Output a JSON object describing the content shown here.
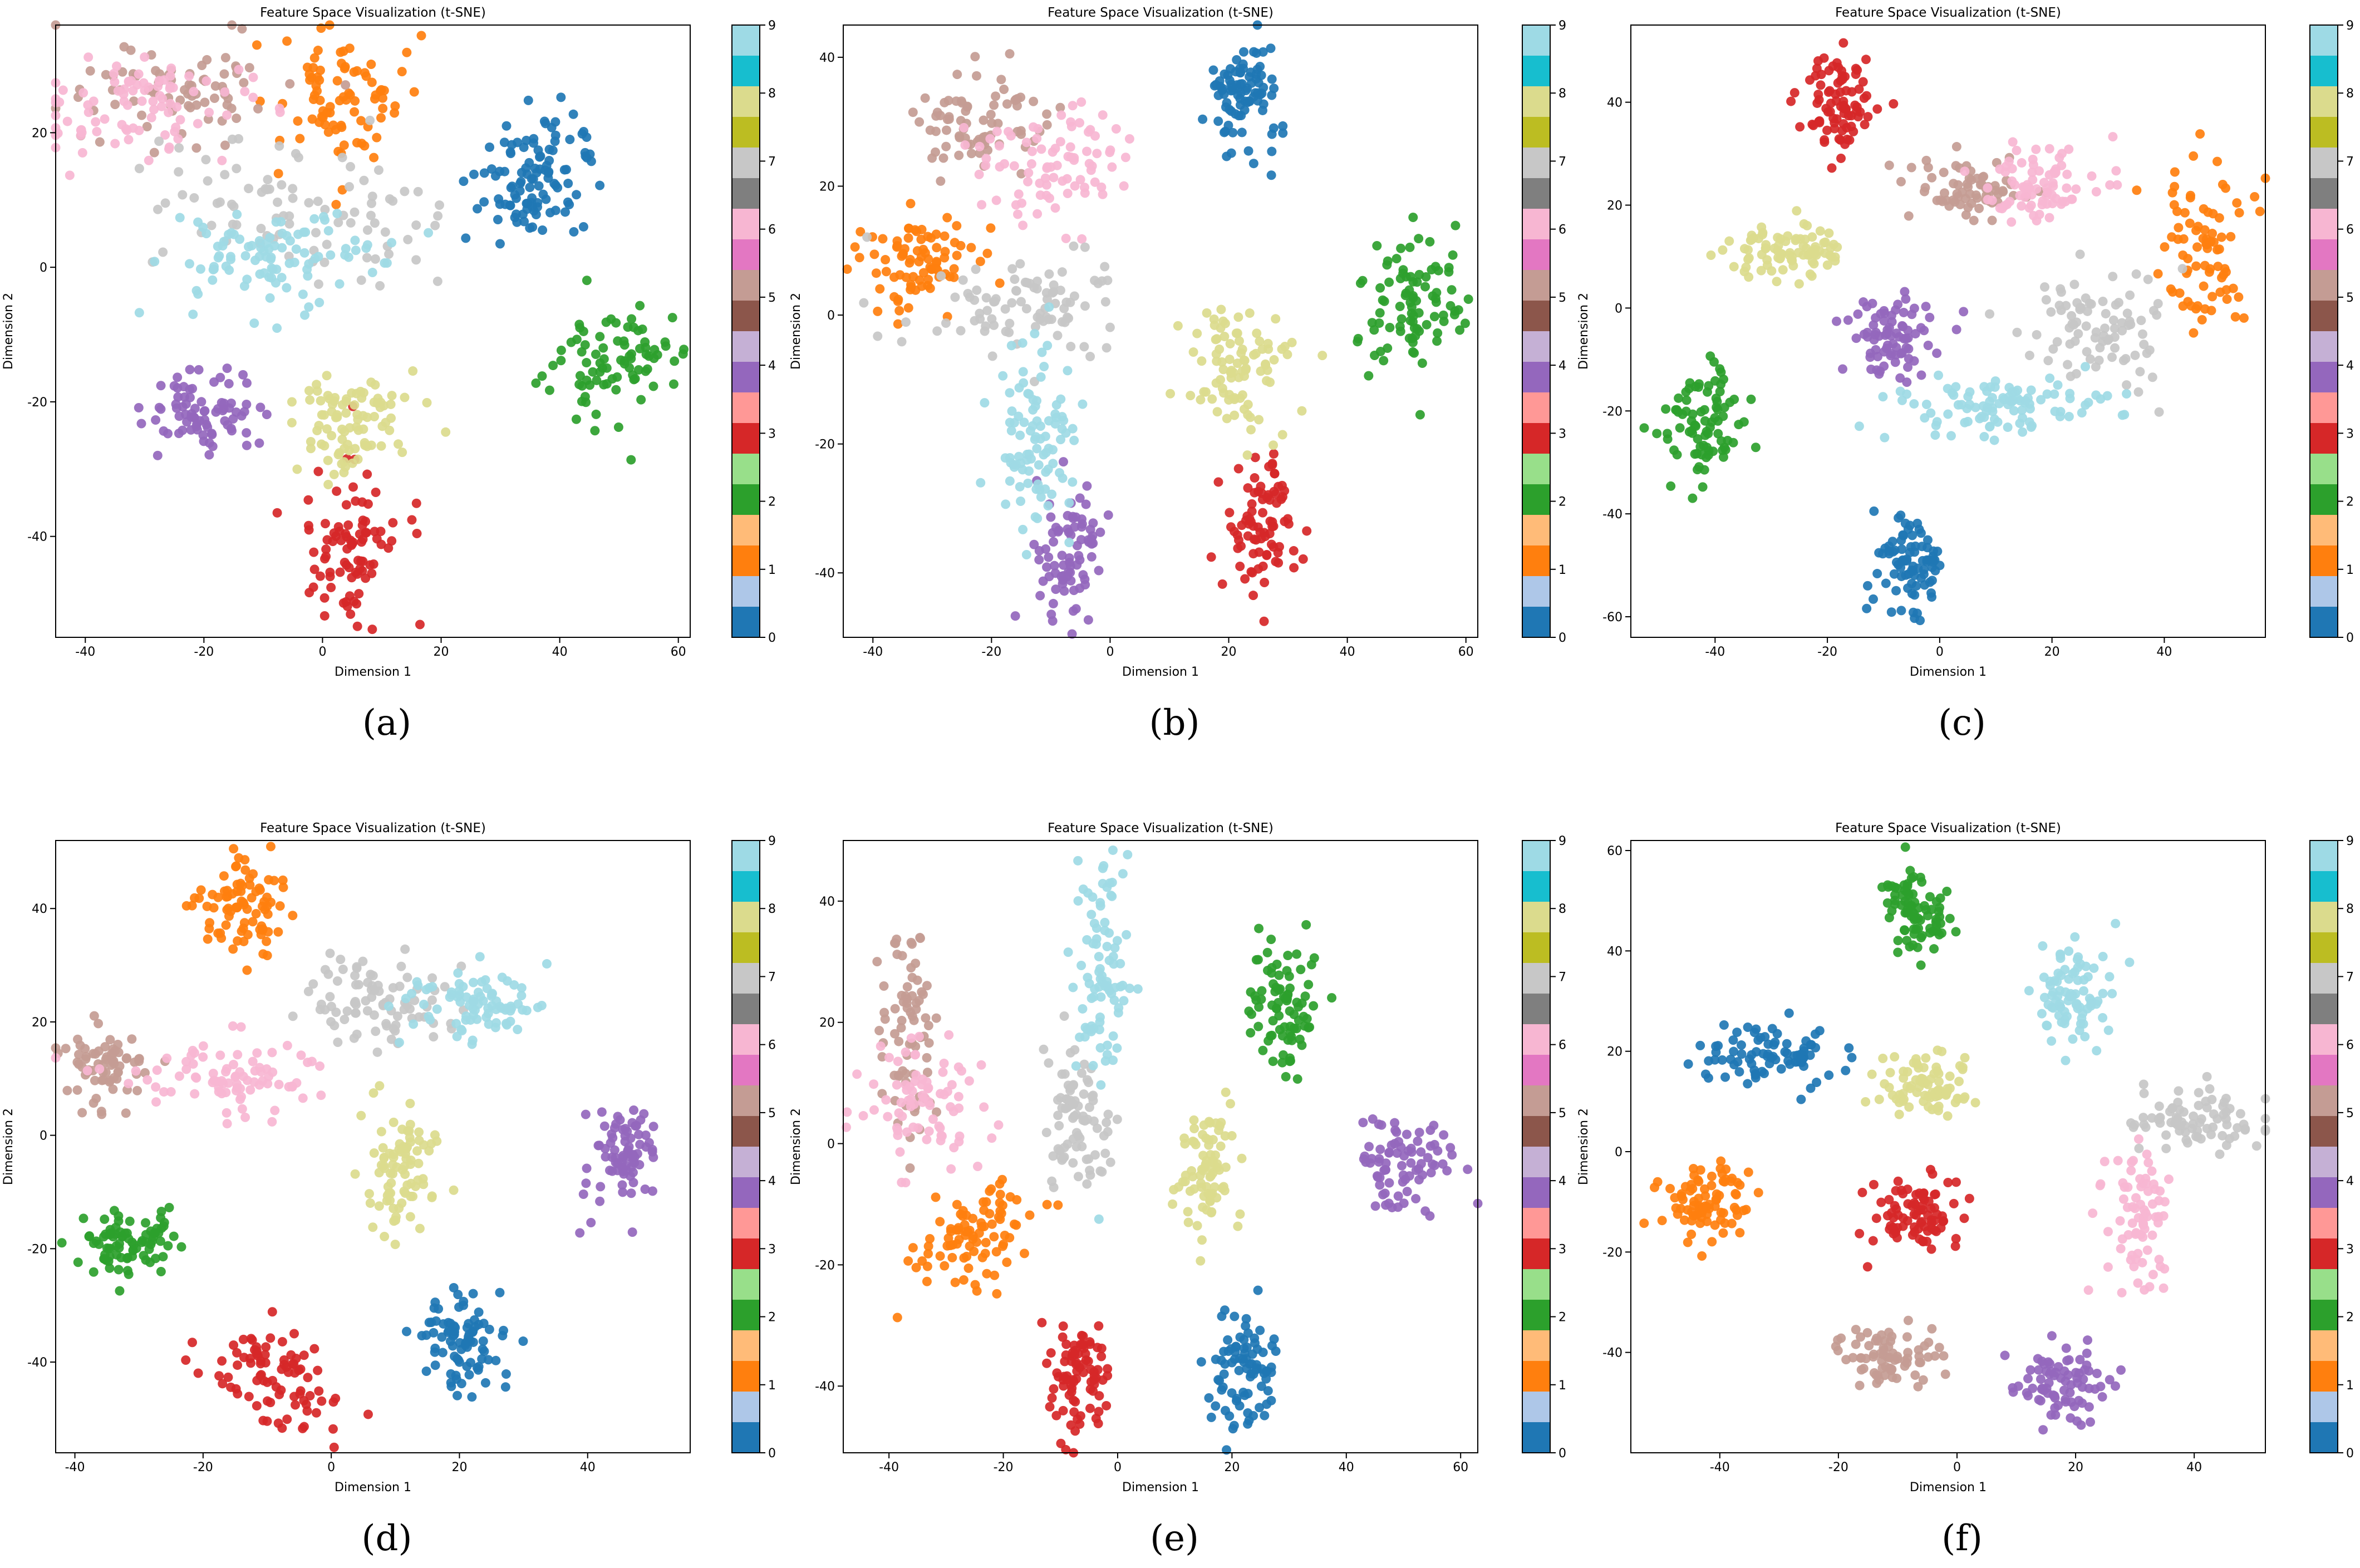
{
  "figure": {
    "panels": [
      "(a)",
      "(b)",
      "(c)",
      "(d)",
      "(e)",
      "(f)"
    ]
  },
  "chart_data": [
    {
      "type": "scatter",
      "title": "Feature Space Visualization (t-SNE)",
      "xlabel": "Dimension 1",
      "ylabel": "Dimension 2",
      "xlim": [
        -45,
        62
      ],
      "ylim": [
        -55,
        36
      ],
      "xticks": [
        -40,
        -20,
        0,
        20,
        40,
        60
      ],
      "yticks": [
        -40,
        -20,
        0,
        20
      ],
      "colorbar": {
        "ticks": [
          "0",
          "1",
          "2",
          "3",
          "4",
          "5",
          "6",
          "7",
          "8",
          "9"
        ],
        "colormap": "tab20"
      },
      "clusters": [
        {
          "label": 0,
          "color": "#1f77b4",
          "center": [
            36,
            13
          ],
          "spread": [
            5,
            4
          ],
          "n": 110,
          "ellipse_angle_deg": 35
        },
        {
          "label": 1,
          "color": "#ff7f0e",
          "center": [
            2,
            25
          ],
          "spread": [
            6,
            5
          ],
          "n": 85
        },
        {
          "label": 2,
          "color": "#2ca02c",
          "center": [
            49,
            -14
          ],
          "spread": [
            5,
            4
          ],
          "n": 85
        },
        {
          "label": 3,
          "color": "#d62728",
          "center": [
            5,
            -42
          ],
          "spread": [
            4,
            6
          ],
          "n": 90
        },
        {
          "label": 4,
          "color": "#9467bd",
          "center": [
            -20,
            -22
          ],
          "spread": [
            5,
            3
          ],
          "n": 80
        },
        {
          "label": 5,
          "color": "#c49c94",
          "center": [
            -23,
            27
          ],
          "spread": [
            10,
            4
          ],
          "n": 80
        },
        {
          "label": 6,
          "color": "#f7b6d2",
          "center": [
            -30,
            24
          ],
          "spread": [
            9,
            4
          ],
          "n": 90
        },
        {
          "label": 7,
          "color": "#c7c7c7",
          "center": [
            -5,
            8
          ],
          "spread": [
            12,
            5
          ],
          "n": 90
        },
        {
          "label": 8,
          "color": "#dbdb8d",
          "center": [
            5,
            -24
          ],
          "spread": [
            5,
            4
          ],
          "n": 90
        },
        {
          "label": 9,
          "color": "#9edae5",
          "center": [
            -8,
            1
          ],
          "spread": [
            9,
            4
          ],
          "n": 100
        }
      ]
    },
    {
      "type": "scatter",
      "title": "Feature Space Visualization (t-SNE)",
      "xlabel": "Dimension 1",
      "ylabel": "Dimension 2",
      "xlim": [
        -45,
        62
      ],
      "ylim": [
        -50,
        45
      ],
      "xticks": [
        -40,
        -20,
        0,
        20,
        40,
        60
      ],
      "yticks": [
        -40,
        -20,
        0,
        20,
        40
      ],
      "colorbar": {
        "ticks": [
          "0",
          "1",
          "2",
          "3",
          "4",
          "5",
          "6",
          "7",
          "8",
          "9"
        ],
        "colormap": "tab20"
      },
      "clusters": [
        {
          "label": 0,
          "color": "#1f77b4",
          "center": [
            22,
            34
          ],
          "spread": [
            3,
            4
          ],
          "n": 90
        },
        {
          "label": 1,
          "color": "#ff7f0e",
          "center": [
            -32,
            8
          ],
          "spread": [
            5,
            4
          ],
          "n": 85
        },
        {
          "label": 2,
          "color": "#2ca02c",
          "center": [
            51,
            2
          ],
          "spread": [
            5,
            5
          ],
          "n": 90,
          "ellipse_angle_deg": 35
        },
        {
          "label": 3,
          "color": "#d62728",
          "center": [
            26,
            -32
          ],
          "spread": [
            3,
            5
          ],
          "n": 85
        },
        {
          "label": 4,
          "color": "#9467bd",
          "center": [
            -7,
            -36
          ],
          "spread": [
            3,
            5
          ],
          "n": 80
        },
        {
          "label": 5,
          "color": "#c49c94",
          "center": [
            -22,
            30
          ],
          "spread": [
            6,
            4
          ],
          "n": 75
        },
        {
          "label": 6,
          "color": "#f7b6d2",
          "center": [
            -9,
            24
          ],
          "spread": [
            6,
            5
          ],
          "n": 85
        },
        {
          "label": 7,
          "color": "#c7c7c7",
          "center": [
            -15,
            2
          ],
          "spread": [
            8,
            4
          ],
          "n": 90
        },
        {
          "label": 8,
          "color": "#dbdb8d",
          "center": [
            22,
            -8
          ],
          "spread": [
            5,
            5
          ],
          "n": 90
        },
        {
          "label": 9,
          "color": "#9edae5",
          "center": [
            -12,
            -18
          ],
          "spread": [
            4,
            7
          ],
          "n": 95
        }
      ]
    },
    {
      "type": "scatter",
      "title": "Feature Space Visualization (t-SNE)",
      "xlabel": "Dimension 1",
      "ylabel": "Dimension 2",
      "xlim": [
        -55,
        58
      ],
      "ylim": [
        -64,
        55
      ],
      "xticks": [
        -40,
        -20,
        0,
        20,
        40
      ],
      "yticks": [
        -60,
        -40,
        -20,
        0,
        20,
        40
      ],
      "colorbar": {
        "ticks": [
          "0",
          "1",
          "2",
          "3",
          "4",
          "5",
          "6",
          "7",
          "8",
          "9"
        ],
        "colormap": "tab20"
      },
      "clusters": [
        {
          "label": 0,
          "color": "#1f77b4",
          "center": [
            -5,
            -50
          ],
          "spread": [
            3,
            5
          ],
          "n": 85
        },
        {
          "label": 1,
          "color": "#ff7f0e",
          "center": [
            47,
            10
          ],
          "spread": [
            4,
            7
          ],
          "n": 80
        },
        {
          "label": 2,
          "color": "#2ca02c",
          "center": [
            -42,
            -22
          ],
          "spread": [
            4,
            5
          ],
          "n": 85
        },
        {
          "label": 3,
          "color": "#d62728",
          "center": [
            -18,
            40
          ],
          "spread": [
            3,
            5
          ],
          "n": 85
        },
        {
          "label": 4,
          "color": "#9467bd",
          "center": [
            -9,
            -6
          ],
          "spread": [
            4,
            4
          ],
          "n": 80
        },
        {
          "label": 5,
          "color": "#c49c94",
          "center": [
            5,
            23
          ],
          "spread": [
            6,
            3
          ],
          "n": 70
        },
        {
          "label": 6,
          "color": "#f7b6d2",
          "center": [
            18,
            24
          ],
          "spread": [
            5,
            4
          ],
          "n": 80
        },
        {
          "label": 7,
          "color": "#c7c7c7",
          "center": [
            29,
            -4
          ],
          "spread": [
            7,
            6
          ],
          "n": 85
        },
        {
          "label": 8,
          "color": "#dbdb8d",
          "center": [
            -27,
            11
          ],
          "spread": [
            5,
            3
          ],
          "n": 85
        },
        {
          "label": 9,
          "color": "#9edae5",
          "center": [
            9,
            -19
          ],
          "spread": [
            10,
            3
          ],
          "n": 100
        }
      ]
    },
    {
      "type": "scatter",
      "title": "Feature Space Visualization (t-SNE)",
      "xlabel": "Dimension 1",
      "ylabel": "Dimension 2",
      "xlim": [
        -43,
        56
      ],
      "ylim": [
        -56,
        52
      ],
      "xticks": [
        -40,
        -20,
        0,
        20,
        40
      ],
      "yticks": [
        -40,
        -20,
        0,
        20,
        40
      ],
      "colorbar": {
        "ticks": [
          "0",
          "1",
          "2",
          "3",
          "4",
          "5",
          "6",
          "7",
          "8",
          "9"
        ],
        "colormap": "tab20"
      },
      "clusters": [
        {
          "label": 0,
          "color": "#1f77b4",
          "center": [
            20,
            -37
          ],
          "spread": [
            3,
            5
          ],
          "n": 85
        },
        {
          "label": 1,
          "color": "#ff7f0e",
          "center": [
            -14,
            40
          ],
          "spread": [
            4,
            4
          ],
          "n": 85
        },
        {
          "label": 2,
          "color": "#2ca02c",
          "center": [
            -32,
            -18
          ],
          "spread": [
            4,
            3
          ],
          "n": 85
        },
        {
          "label": 3,
          "color": "#d62728",
          "center": [
            -9,
            -42
          ],
          "spread": [
            4,
            6
          ],
          "n": 85,
          "ellipse_angle_deg": 55
        },
        {
          "label": 4,
          "color": "#9467bd",
          "center": [
            46,
            -3
          ],
          "spread": [
            3,
            5
          ],
          "n": 80
        },
        {
          "label": 5,
          "color": "#c49c94",
          "center": [
            -35,
            12
          ],
          "spread": [
            4,
            4
          ],
          "n": 70
        },
        {
          "label": 6,
          "color": "#f7b6d2",
          "center": [
            -16,
            10
          ],
          "spread": [
            8,
            3
          ],
          "n": 85
        },
        {
          "label": 7,
          "color": "#c7c7c7",
          "center": [
            7,
            24
          ],
          "spread": [
            6,
            4
          ],
          "n": 85
        },
        {
          "label": 8,
          "color": "#dbdb8d",
          "center": [
            10,
            -6
          ],
          "spread": [
            3,
            6
          ],
          "n": 85
        },
        {
          "label": 9,
          "color": "#9edae5",
          "center": [
            23,
            23
          ],
          "spread": [
            5,
            3
          ],
          "n": 85
        }
      ]
    },
    {
      "type": "scatter",
      "title": "Feature Space Visualization (t-SNE)",
      "xlabel": "Dimension 1",
      "ylabel": "Dimension 2",
      "xlim": [
        -48,
        63
      ],
      "ylim": [
        -51,
        50
      ],
      "xticks": [
        -40,
        -20,
        0,
        20,
        40,
        60
      ],
      "yticks": [
        -40,
        -20,
        0,
        20,
        40
      ],
      "colorbar": {
        "ticks": [
          "0",
          "1",
          "2",
          "3",
          "4",
          "5",
          "6",
          "7",
          "8",
          "9"
        ],
        "colormap": "tab20"
      },
      "clusters": [
        {
          "label": 0,
          "color": "#1f77b4",
          "center": [
            22,
            -37
          ],
          "spread": [
            3,
            5
          ],
          "n": 85
        },
        {
          "label": 1,
          "color": "#ff7f0e",
          "center": [
            -25,
            -16
          ],
          "spread": [
            6,
            4
          ],
          "n": 90,
          "ellipse_angle_deg": 35
        },
        {
          "label": 2,
          "color": "#2ca02c",
          "center": [
            29,
            22
          ],
          "spread": [
            3,
            5
          ],
          "n": 85
        },
        {
          "label": 3,
          "color": "#d62728",
          "center": [
            -6,
            -38
          ],
          "spread": [
            3,
            5
          ],
          "n": 85
        },
        {
          "label": 4,
          "color": "#9467bd",
          "center": [
            50,
            -3
          ],
          "spread": [
            4,
            4
          ],
          "n": 80
        },
        {
          "label": 5,
          "color": "#c49c94",
          "center": [
            -37,
            20
          ],
          "spread": [
            3,
            8
          ],
          "n": 75
        },
        {
          "label": 6,
          "color": "#f7b6d2",
          "center": [
            -35,
            7
          ],
          "spread": [
            5,
            6
          ],
          "n": 80
        },
        {
          "label": 7,
          "color": "#c7c7c7",
          "center": [
            -7,
            5
          ],
          "spread": [
            3,
            6
          ],
          "n": 80
        },
        {
          "label": 8,
          "color": "#dbdb8d",
          "center": [
            16,
            -5
          ],
          "spread": [
            3,
            5
          ],
          "n": 80
        },
        {
          "label": 9,
          "color": "#9edae5",
          "center": [
            -3,
            30
          ],
          "spread": [
            2,
            10
          ],
          "n": 90
        }
      ]
    },
    {
      "type": "scatter",
      "title": "Feature Space Visualization (t-SNE)",
      "xlabel": "Dimension 1",
      "ylabel": "Dimension 2",
      "xlim": [
        -55,
        52
      ],
      "ylim": [
        -60,
        62
      ],
      "xticks": [
        -40,
        -20,
        0,
        20,
        40
      ],
      "yticks": [
        -40,
        -20,
        0,
        20,
        40,
        60
      ],
      "colorbar": {
        "ticks": [
          "0",
          "1",
          "2",
          "3",
          "4",
          "5",
          "6",
          "7",
          "8",
          "9"
        ],
        "colormap": "tab20"
      },
      "clusters": [
        {
          "label": 0,
          "color": "#1f77b4",
          "center": [
            -32,
            19
          ],
          "spread": [
            6,
            3
          ],
          "n": 85
        },
        {
          "label": 1,
          "color": "#ff7f0e",
          "center": [
            -42,
            -10
          ],
          "spread": [
            4,
            4
          ],
          "n": 85
        },
        {
          "label": 2,
          "color": "#2ca02c",
          "center": [
            -7,
            48
          ],
          "spread": [
            3,
            4
          ],
          "n": 85
        },
        {
          "label": 3,
          "color": "#d62728",
          "center": [
            -7,
            -12
          ],
          "spread": [
            4,
            4
          ],
          "n": 85
        },
        {
          "label": 4,
          "color": "#9467bd",
          "center": [
            18,
            -46
          ],
          "spread": [
            4,
            4
          ],
          "n": 80
        },
        {
          "label": 5,
          "color": "#c49c94",
          "center": [
            -12,
            -40
          ],
          "spread": [
            5,
            3
          ],
          "n": 75
        },
        {
          "label": 6,
          "color": "#f7b6d2",
          "center": [
            31,
            -12
          ],
          "spread": [
            3,
            7
          ],
          "n": 75
        },
        {
          "label": 7,
          "color": "#c7c7c7",
          "center": [
            40,
            7
          ],
          "spread": [
            6,
            3
          ],
          "n": 80
        },
        {
          "label": 8,
          "color": "#dbdb8d",
          "center": [
            -5,
            13
          ],
          "spread": [
            4,
            3
          ],
          "n": 85
        },
        {
          "label": 9,
          "color": "#9edae5",
          "center": [
            20,
            31
          ],
          "spread": [
            3,
            5
          ],
          "n": 85
        }
      ]
    }
  ]
}
